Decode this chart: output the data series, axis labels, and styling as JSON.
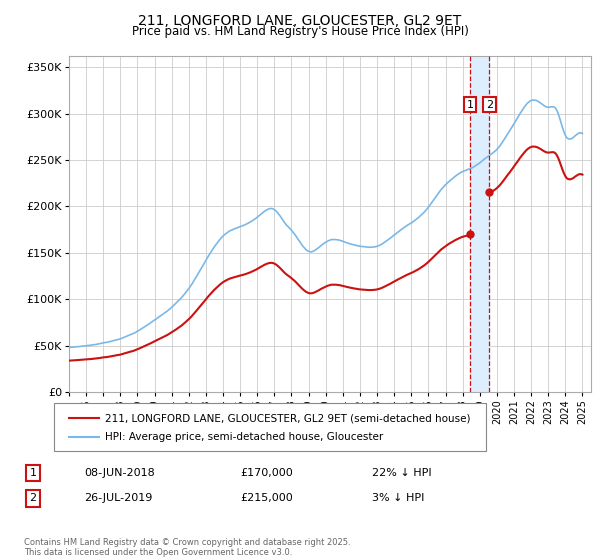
{
  "title": "211, LONGFORD LANE, GLOUCESTER, GL2 9ET",
  "subtitle": "Price paid vs. HM Land Registry's House Price Index (HPI)",
  "ylabel_ticks": [
    "£0",
    "£50K",
    "£100K",
    "£150K",
    "£200K",
    "£250K",
    "£300K",
    "£350K"
  ],
  "ytick_values": [
    0,
    50000,
    100000,
    150000,
    200000,
    250000,
    300000,
    350000
  ],
  "ylim": [
    0,
    362000
  ],
  "xlim_start": 1995.0,
  "xlim_end": 2025.5,
  "hpi_color": "#7ab8e8",
  "property_color": "#cc1111",
  "dashed_line_color": "#cc1111",
  "shade_color": "#ddeeff",
  "legend_label_1": "211, LONGFORD LANE, GLOUCESTER, GL2 9ET (semi-detached house)",
  "legend_label_2": "HPI: Average price, semi-detached house, Gloucester",
  "transaction_1_date": "08-JUN-2018",
  "transaction_1_price": "£170,000",
  "transaction_1_hpi": "22% ↓ HPI",
  "transaction_1_year": 2018.44,
  "transaction_1_value": 170000,
  "transaction_2_date": "26-JUL-2019",
  "transaction_2_price": "£215,000",
  "transaction_2_hpi": "3% ↓ HPI",
  "transaction_2_year": 2019.56,
  "transaction_2_value": 215000,
  "footer": "Contains HM Land Registry data © Crown copyright and database right 2025.\nThis data is licensed under the Open Government Licence v3.0.",
  "background_color": "#ffffff",
  "grid_color": "#cccccc"
}
